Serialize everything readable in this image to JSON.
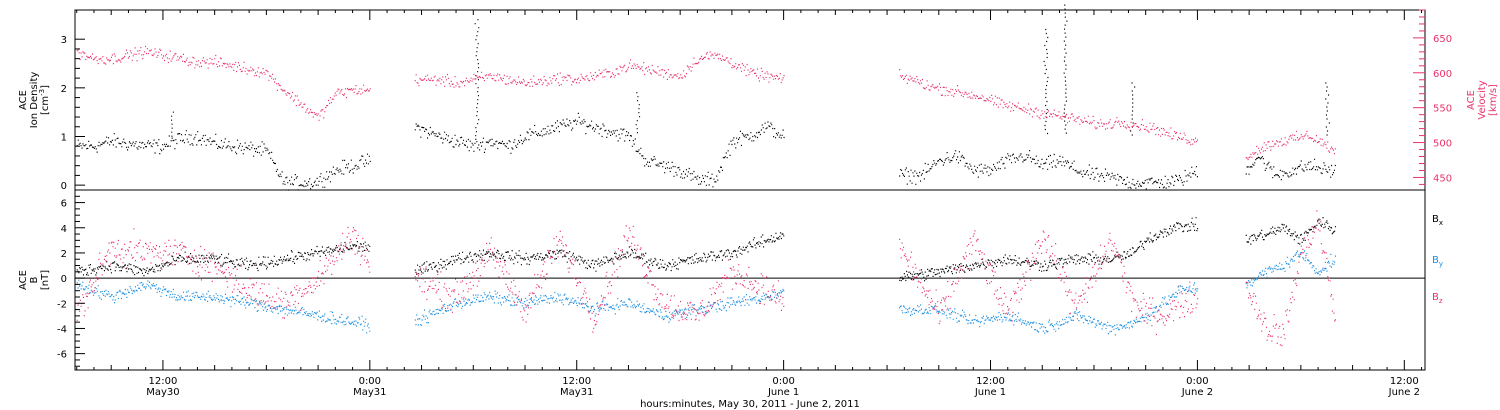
{
  "chart_data": {
    "type": "scatter",
    "x_unit": "hours since 2011-05-30 00:00 UT",
    "xlim": [
      6.9,
      85.2
    ],
    "x_axis": {
      "label": "hours:minutes, May 30, 2011 - June  2, 2011",
      "ticks": [
        {
          "hours": 12,
          "time": "12:00",
          "date": "May30"
        },
        {
          "hours": 24,
          "time": "0:00",
          "date": "May31"
        },
        {
          "hours": 36,
          "time": "12:00",
          "date": "May31"
        },
        {
          "hours": 48,
          "time": "0:00",
          "date": "June 1"
        },
        {
          "hours": 60,
          "time": "12:00",
          "date": "June 1"
        },
        {
          "hours": 72,
          "time": "0:00",
          "date": "June 2"
        },
        {
          "hours": 84,
          "time": "12:00",
          "date": "June 2"
        }
      ]
    },
    "panels": [
      {
        "id": "density-velocity",
        "left_axis": {
          "label_line1": "ACE",
          "label_line2": "Ion Density",
          "label_line3": "[cm",
          "label_sup": "-3",
          "label_close": "]",
          "ylim": [
            -0.1,
            3.6
          ],
          "ticks": [
            0,
            1,
            2,
            3
          ],
          "tick_labels": [
            "0",
            "1",
            "2",
            "3"
          ],
          "color": "#000000"
        },
        "right_axis": {
          "label_line1": "ACE",
          "label_line2": "Velocity",
          "label_line3": "[km/s]",
          "ylim": [
            432,
            690
          ],
          "ticks": [
            450,
            500,
            550,
            600,
            650
          ],
          "tick_labels": [
            "450",
            "500",
            "550",
            "600",
            "650"
          ],
          "color": "#e8336a"
        },
        "series": [
          {
            "name": "Ion Density",
            "axis": "left",
            "color": "#000000",
            "segments": [
              {
                "x": [
                  7.0,
                  8.0,
                  9.0,
                  10.0,
                  11.0,
                  12.0,
                  13.0,
                  14.0,
                  15.0,
                  16.0,
                  17.0,
                  18.0,
                  19.0,
                  20.0,
                  20.8,
                  22.0,
                  23.0,
                  24.0
                ],
                "y": [
                  0.8,
                  0.8,
                  0.9,
                  0.85,
                  0.8,
                  0.8,
                  0.95,
                  1.0,
                  0.85,
                  0.8,
                  0.75,
                  0.7,
                  0.05,
                  0.05,
                  0.05,
                  0.3,
                  0.4,
                  0.5
                ]
              },
              {
                "x": [
                  26.6,
                  28.0,
                  29.0,
                  30.0,
                  31.0,
                  32.0,
                  33.0,
                  34.0,
                  35.0,
                  36.0,
                  37.0,
                  38.0,
                  39.0,
                  40.0,
                  41.0,
                  42.0,
                  43.0,
                  44.0,
                  45.0,
                  46.0,
                  47.0,
                  48.0
                ],
                "y": [
                  1.2,
                  1.0,
                  0.9,
                  0.8,
                  0.9,
                  0.8,
                  1.0,
                  1.1,
                  1.2,
                  1.3,
                  1.2,
                  1.1,
                  1.0,
                  0.5,
                  0.4,
                  0.3,
                  0.1,
                  0.1,
                  0.9,
                  1.0,
                  1.2,
                  1.0
                ]
              },
              {
                "x": [
                  54.7,
                  56.0,
                  57.0,
                  58.0,
                  59.0,
                  60.0,
                  61.0,
                  62.0,
                  63.0,
                  64.0,
                  65.0,
                  66.0,
                  67.0,
                  68.0,
                  69.0,
                  70.0,
                  71.0,
                  72.0
                ],
                "y": [
                  0.2,
                  0.2,
                  0.5,
                  0.6,
                  0.3,
                  0.3,
                  0.5,
                  0.6,
                  0.4,
                  0.5,
                  0.3,
                  0.2,
                  0.15,
                  0.05,
                  0.05,
                  0.05,
                  0.1,
                  0.3
                ]
              },
              {
                "x": [
                  74.8,
                  75.5,
                  76.5,
                  77.5,
                  78.5,
                  79.5,
                  80.0
                ],
                "y": [
                  0.3,
                  0.6,
                  0.2,
                  0.3,
                  0.4,
                  0.3,
                  0.3
                ]
              }
            ],
            "spikes": [
              [
                12.5,
                1.5
              ],
              [
                30.2,
                3.4
              ],
              [
                39.5,
                1.9
              ],
              [
                63.2,
                3.2
              ],
              [
                64.3,
                3.7
              ],
              [
                68.2,
                2.1
              ],
              [
                79.5,
                2.1
              ]
            ]
          },
          {
            "name": "Velocity",
            "axis": "right",
            "color": "#e8336a",
            "segments": [
              {
                "x": [
                  7.0,
                  8.0,
                  9.0,
                  10.0,
                  11.0,
                  12.0,
                  13.0,
                  14.0,
                  15.0,
                  16.0,
                  17.0,
                  18.0,
                  19.0,
                  20.0,
                  21.0,
                  22.0,
                  23.0,
                  24.0
                ],
                "y": [
                  630,
                  620,
                  620,
                  625,
                  630,
                  625,
                  620,
                  615,
                  615,
                  610,
                  605,
                  600,
                  575,
                  555,
                  535,
                  570,
                  575,
                  575
                ]
              },
              {
                "x": [
                  26.6,
                  28.0,
                  29.0,
                  30.0,
                  31.0,
                  32.0,
                  33.0,
                  34.0,
                  35.0,
                  36.0,
                  37.0,
                  38.0,
                  39.0,
                  40.0,
                  41.0,
                  42.0,
                  43.0,
                  44.0,
                  45.0,
                  46.0,
                  47.0,
                  48.0
                ],
                "y": [
                  590,
                  590,
                  585,
                  590,
                  595,
                  590,
                  585,
                  588,
                  592,
                  590,
                  595,
                  600,
                  610,
                  605,
                  600,
                  595,
                  620,
                  625,
                  615,
                  600,
                  595,
                  590
                ]
              },
              {
                "x": [
                  54.7,
                  55.5,
                  56.5,
                  57.5,
                  58.5,
                  59.5,
                  60.5,
                  61.5,
                  62.5,
                  63.5,
                  64.5,
                  65.5,
                  66.5,
                  67.5,
                  68.5,
                  69.5,
                  70.5,
                  71.5,
                  72.0
                ],
                "y": [
                  595,
                  590,
                  580,
                  575,
                  570,
                  565,
                  555,
                  550,
                  545,
                  540,
                  535,
                  530,
                  525,
                  530,
                  525,
                  520,
                  510,
                  505,
                  500
                ]
              },
              {
                "x": [
                  74.8,
                  75.5,
                  76.5,
                  77.5,
                  78.5,
                  79.5,
                  80.0
                ],
                "y": [
                  480,
                  490,
                  500,
                  505,
                  510,
                  495,
                  485
                ]
              }
            ]
          }
        ]
      },
      {
        "id": "magnetic-field",
        "left_axis": {
          "label_line1": "ACE",
          "label_line2": "B",
          "label_line3": "[nT]",
          "ylim": [
            -7.3,
            7.0
          ],
          "ticks": [
            -6,
            -4,
            -2,
            0,
            2,
            4,
            6
          ],
          "tick_labels": [
            "-6",
            "-4",
            "-2",
            "0",
            "2",
            "4",
            "6"
          ],
          "zero_line": true
        },
        "series": [
          {
            "name": "B",
            "subscript": "x",
            "color": "#000000",
            "segments": [
              {
                "x": [
                  7.0,
                  9.0,
                  11.0,
                  13.0,
                  15.0,
                  17.0,
                  19.0,
                  21.0,
                  23.0,
                  24.0
                ],
                "y": [
                  0.5,
                  1.0,
                  0.5,
                  1.5,
                  1.5,
                  1.0,
                  1.5,
                  2.0,
                  2.5,
                  2.5
                ]
              },
              {
                "x": [
                  26.6,
                  29.0,
                  31.0,
                  33.0,
                  35.0,
                  37.0,
                  39.0,
                  41.0,
                  43.0,
                  45.0,
                  47.0,
                  48.0
                ],
                "y": [
                  0.5,
                  1.5,
                  2.0,
                  1.5,
                  2.0,
                  1.0,
                  2.0,
                  1.0,
                  1.5,
                  2.0,
                  3.0,
                  3.5
                ]
              },
              {
                "x": [
                  54.7,
                  57.0,
                  59.0,
                  61.0,
                  63.0,
                  65.0,
                  67.0,
                  68.3,
                  69.0,
                  70.5,
                  72.0
                ],
                "y": [
                  0.0,
                  0.5,
                  1.0,
                  1.5,
                  1.0,
                  1.5,
                  1.5,
                  2.0,
                  3.0,
                  4.0,
                  4.2
                ]
              },
              {
                "x": [
                  74.8,
                  76.0,
                  77.0,
                  78.0,
                  79.0,
                  80.0
                ],
                "y": [
                  3.0,
                  3.5,
                  4.0,
                  3.0,
                  4.5,
                  3.8
                ]
              }
            ]
          },
          {
            "name": "B",
            "subscript": "y",
            "color": "#1a8ee0",
            "segments": [
              {
                "x": [
                  7.0,
                  9.0,
                  11.0,
                  13.0,
                  15.0,
                  17.0,
                  19.0,
                  21.0,
                  23.0,
                  24.0
                ],
                "y": [
                  -0.5,
                  -1.5,
                  -0.5,
                  -1.5,
                  -1.5,
                  -2.0,
                  -2.5,
                  -3.0,
                  -3.5,
                  -3.8
                ]
              },
              {
                "x": [
                  26.6,
                  29.0,
                  31.0,
                  33.0,
                  35.0,
                  37.0,
                  39.0,
                  41.0,
                  43.0,
                  45.0,
                  47.0,
                  48.0
                ],
                "y": [
                  -3.5,
                  -2.0,
                  -1.5,
                  -2.0,
                  -1.5,
                  -2.5,
                  -2.0,
                  -3.0,
                  -2.5,
                  -2.0,
                  -1.5,
                  -1.0
                ]
              },
              {
                "x": [
                  54.7,
                  57.0,
                  59.0,
                  61.0,
                  63.0,
                  65.0,
                  67.0,
                  68.5,
                  70.0,
                  71.0,
                  72.0
                ],
                "y": [
                  -2.5,
                  -2.5,
                  -3.5,
                  -3.0,
                  -4.0,
                  -3.0,
                  -4.0,
                  -3.5,
                  -2.0,
                  -1.0,
                  -0.8
                ]
              },
              {
                "x": [
                  74.8,
                  76.0,
                  77.0,
                  78.0,
                  79.0,
                  80.0
                ],
                "y": [
                  -0.5,
                  0.5,
                  1.0,
                  2.0,
                  0.5,
                  1.5
                ]
              }
            ]
          },
          {
            "name": "B",
            "subscript": "z",
            "color": "#e8336a",
            "segments": [
              {
                "x": [
                  7.0,
                  9.0,
                  11.0,
                  13.0,
                  15.0,
                  17.0,
                  19.0,
                  21.0,
                  23.0,
                  24.0
                ],
                "y": [
                  -3.0,
                  2.5,
                  2.0,
                  2.0,
                  1.0,
                  -1.0,
                  -2.0,
                  0.0,
                  3.5,
                  1.0
                ]
              },
              {
                "x": [
                  26.6,
                  29.0,
                  31.0,
                  33.0,
                  35.0,
                  37.0,
                  39.0,
                  41.0,
                  43.0,
                  45.0,
                  47.0,
                  48.0
                ],
                "y": [
                  0.0,
                  -1.5,
                  2.0,
                  -2.5,
                  3.0,
                  -3.0,
                  3.5,
                  -2.0,
                  -3.0,
                  0.5,
                  -1.0,
                  -2.0
                ]
              },
              {
                "x": [
                  54.7,
                  57.0,
                  59.0,
                  61.0,
                  63.0,
                  65.0,
                  67.0,
                  68.5,
                  70.0,
                  71.0,
                  72.0
                ],
                "y": [
                  2.5,
                  -3.0,
                  3.0,
                  -3.0,
                  3.5,
                  -2.5,
                  3.0,
                  -2.5,
                  -3.0,
                  -2.0,
                  -1.5
                ]
              },
              {
                "x": [
                  74.8,
                  76.0,
                  77.0,
                  78.0,
                  79.0,
                  80.0
                ],
                "y": [
                  -0.5,
                  -4.0,
                  -4.5,
                  2.0,
                  4.5,
                  -3.5
                ]
              }
            ]
          }
        ]
      }
    ]
  }
}
